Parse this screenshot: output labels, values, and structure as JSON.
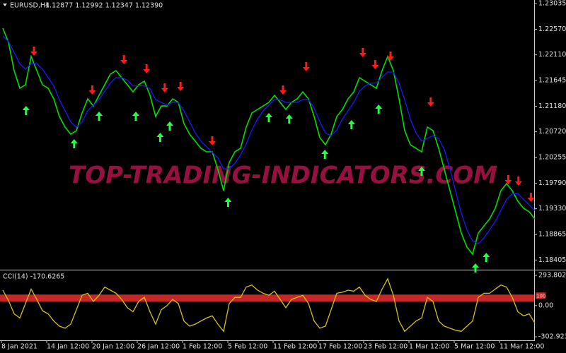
{
  "chart_data": [
    {
      "type": "line",
      "title": "EURUSD,H4",
      "quote": "1.12877 1.12992 1.12347 1.12390",
      "watermark": "TOP-TRADING-INDICATORS.COM",
      "categories": [
        "8 Jan 2021",
        null,
        null,
        null,
        null,
        null,
        null,
        null,
        "14 Jan 12:00",
        null,
        null,
        null,
        null,
        null,
        null,
        null,
        "20 Jan 12:00",
        null,
        null,
        null,
        null,
        null,
        null,
        null,
        "26 Jan 12:00",
        null,
        null,
        null,
        null,
        null,
        null,
        null,
        "1 Feb 12:00",
        null,
        null,
        null,
        null,
        null,
        null,
        null,
        "5 Feb 12:00",
        null,
        null,
        null,
        null,
        null,
        null,
        null,
        "11 Feb 12:00",
        null,
        null,
        null,
        null,
        null,
        null,
        null,
        "17 Feb 12:00",
        null,
        null,
        null,
        null,
        null,
        null,
        null,
        "23 Feb 12:00",
        null,
        null,
        null,
        null,
        null,
        null,
        null,
        "1 Mar 12:00",
        null,
        null,
        null,
        null,
        null,
        null,
        null,
        "5 Mar 12:00",
        null,
        null,
        null,
        null,
        null,
        null,
        null,
        "11 Mar 12:00",
        null,
        null,
        null,
        null,
        null,
        null
      ],
      "series": [
        {
          "color": "#00e000",
          "values": [
            1.2259,
            1.22335,
            1.21825,
            1.21506,
            1.2157,
            1.2208,
            1.21825,
            1.2157,
            1.21506,
            1.21315,
            1.20996,
            1.20805,
            1.20677,
            1.20741,
            1.2106,
            1.21315,
            1.21187,
            1.21379,
            1.2157,
            1.21761,
            1.21825,
            1.21697,
            1.2157,
            1.21442,
            1.2157,
            1.21634,
            1.21379,
            1.20996,
            1.21187,
            1.21187,
            1.21315,
            1.21251,
            1.20869,
            1.20677,
            1.2055,
            1.20422,
            1.20359,
            1.20359,
            1.2004,
            1.19657,
            1.20167,
            1.20359,
            1.20422,
            1.20805,
            1.2106,
            1.21124,
            1.21187,
            1.21251,
            1.21379,
            1.21251,
            1.21124,
            1.21251,
            1.21315,
            1.21442,
            1.21315,
            1.20996,
            1.20614,
            1.20486,
            1.20677,
            1.20996,
            1.21124,
            1.21315,
            1.21442,
            1.21697,
            1.21634,
            1.2157,
            1.21506,
            1.21825,
            1.2208,
            1.21825,
            1.21315,
            1.20741,
            1.20486,
            1.20422,
            1.20359,
            1.20805,
            1.20741,
            1.20422,
            1.2004,
            1.19657,
            1.19275,
            1.18892,
            1.18637,
            1.1851,
            1.18892,
            1.1902,
            1.19147,
            1.19339,
            1.19657,
            1.19785,
            1.19657,
            1.19466,
            1.19339,
            1.19275,
            1.19147
          ]
        },
        {
          "color": "#1a1aff",
          "values": [
            1.2245,
            1.2235,
            1.2215,
            1.2195,
            1.2185,
            1.2195,
            1.2195,
            1.2185,
            1.217,
            1.2155,
            1.213,
            1.211,
            1.209,
            1.208,
            1.209,
            1.211,
            1.212,
            1.213,
            1.2145,
            1.216,
            1.217,
            1.217,
            1.2165,
            1.2155,
            1.2155,
            1.2155,
            1.215,
            1.213,
            1.2125,
            1.212,
            1.2125,
            1.2125,
            1.211,
            1.209,
            1.207,
            1.2055,
            1.2045,
            1.2035,
            1.2025,
            1.2005,
            1.2005,
            1.2015,
            1.203,
            1.205,
            1.2075,
            1.2095,
            1.211,
            1.212,
            1.213,
            1.213,
            1.2125,
            1.2125,
            1.2125,
            1.213,
            1.213,
            1.2115,
            1.209,
            1.207,
            1.2065,
            1.2075,
            1.2095,
            1.211,
            1.2125,
            1.2145,
            1.2155,
            1.216,
            1.216,
            1.217,
            1.218,
            1.218,
            1.216,
            1.213,
            1.2095,
            1.207,
            1.2055,
            1.206,
            1.2065,
            1.206,
            1.204,
            1.2005,
            1.1965,
            1.1925,
            1.1895,
            1.1875,
            1.187,
            1.188,
            1.1895,
            1.191,
            1.193,
            1.195,
            1.196,
            1.196,
            1.195,
            1.194,
            1.193
          ]
        }
      ],
      "sell_arrows": {
        "color": "#ff1a1a",
        "points": [
          {
            "x": 5.5,
            "y": 1.22106
          },
          {
            "x": 15.8,
            "y": 1.21404
          },
          {
            "x": 21.4,
            "y": 1.21953
          },
          {
            "x": 25.4,
            "y": 1.21787
          },
          {
            "x": 28.6,
            "y": 1.21443
          },
          {
            "x": 31.4,
            "y": 1.21468
          },
          {
            "x": 37,
            "y": 1.20486
          },
          {
            "x": 49.5,
            "y": 1.21404
          },
          {
            "x": 53.6,
            "y": 1.21825
          },
          {
            "x": 63.6,
            "y": 1.2208
          },
          {
            "x": 65.8,
            "y": 1.21863
          },
          {
            "x": 68.5,
            "y": 1.22016
          },
          {
            "x": 75.6,
            "y": 1.21187
          },
          {
            "x": 89.3,
            "y": 1.19785
          },
          {
            "x": 91.1,
            "y": 1.1976
          },
          {
            "x": 93.3,
            "y": 1.19466
          }
        ]
      },
      "buy_arrows": {
        "color": "#22ff44",
        "points": [
          {
            "x": 4.1,
            "y": 1.21187
          },
          {
            "x": 12.6,
            "y": 1.20588
          },
          {
            "x": 17,
            "y": 1.21086
          },
          {
            "x": 23.5,
            "y": 1.21086
          },
          {
            "x": 27.8,
            "y": 1.20703
          },
          {
            "x": 29.5,
            "y": 1.20907
          },
          {
            "x": 39.8,
            "y": 1.1953
          },
          {
            "x": 47,
            "y": 1.2106
          },
          {
            "x": 50.6,
            "y": 1.21035
          },
          {
            "x": 56.9,
            "y": 1.20397
          },
          {
            "x": 61.6,
            "y": 1.20933
          },
          {
            "x": 66.4,
            "y": 1.21213
          },
          {
            "x": 74,
            "y": 1.20091
          },
          {
            "x": 83.5,
            "y": 1.18344
          },
          {
            "x": 85.4,
            "y": 1.18536
          }
        ]
      },
      "ylim": [
        1.1823,
        1.231
      ],
      "yticks": [
        1.23035,
        {
          "value": 1.2257,
          "label": "1.22570"
        },
        {
          "value": 1.2211,
          "label": "1.22110"
        },
        1.21645,
        {
          "value": 1.2118,
          "label": "1.21180"
        },
        {
          "value": 1.2072,
          "label": "1.20720"
        },
        1.20255,
        {
          "value": 1.1979,
          "label": "1.19790"
        },
        {
          "value": 1.1933,
          "label": "1.19330"
        },
        1.18865,
        1.18405
      ]
    },
    {
      "type": "line",
      "title": "CCI(14) -170.6265",
      "series": [
        {
          "color": "#d4c21a",
          "values": [
            150,
            50,
            -80,
            -120,
            20,
            160,
            60,
            -50,
            -80,
            -150,
            -200,
            -220,
            -180,
            -40,
            100,
            120,
            40,
            100,
            180,
            150,
            120,
            60,
            -20,
            -60,
            40,
            80,
            -60,
            -180,
            -40,
            0,
            60,
            20,
            -150,
            -200,
            -180,
            -150,
            -120,
            -100,
            -180,
            -250,
            20,
            80,
            80,
            180,
            200,
            150,
            120,
            100,
            140,
            60,
            -20,
            60,
            80,
            100,
            20,
            -150,
            -220,
            -200,
            -40,
            120,
            130,
            150,
            140,
            180,
            100,
            60,
            40,
            160,
            260,
            100,
            -150,
            -250,
            -200,
            -150,
            -120,
            80,
            40,
            -150,
            -200,
            -220,
            -240,
            -250,
            -200,
            -150,
            80,
            120,
            120,
            160,
            200,
            180,
            80,
            -60,
            -100,
            -80,
            -170.6265
          ]
        }
      ],
      "levels": [
        {
          "value": 100,
          "color": "#c62828"
        }
      ],
      "ylim": [
        -337,
        335
      ],
      "yticks": [
        293.8027,
        {
          "value": 0,
          "label": "0.00"
        },
        -302.9234
      ]
    }
  ]
}
